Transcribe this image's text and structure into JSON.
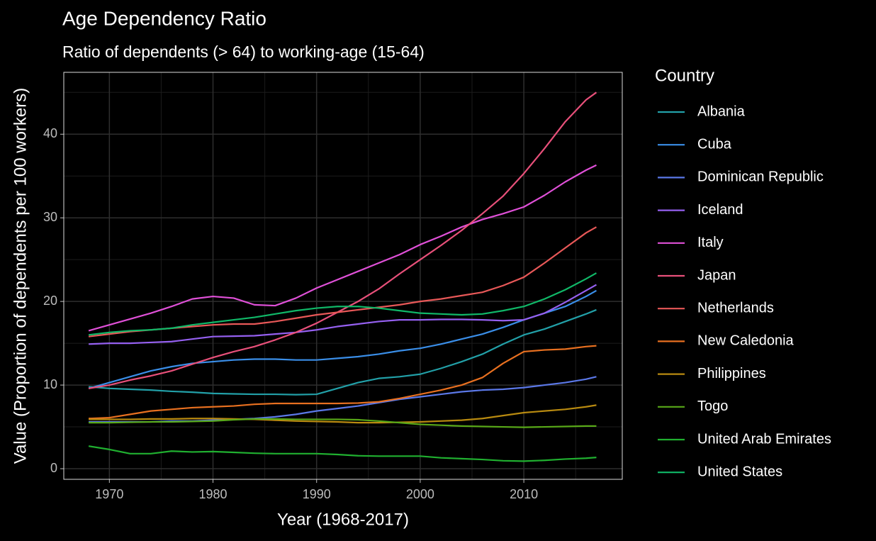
{
  "chart_data": {
    "type": "line",
    "title": "Age Dependency Ratio",
    "subtitle": "Ratio of dependents (> 64) to working-age (15-64)",
    "x_label": "Year (1968-2017)",
    "y_label": "Value (Proportion of dependents per 100 workers)",
    "legend_title": "Country",
    "legend": "right",
    "grid": true,
    "xlim": [
      1965.6,
      2019.5
    ],
    "ylim": [
      -1.27,
      47.4
    ],
    "xticks": [
      1970,
      1980,
      1990,
      2000,
      2010
    ],
    "yticks": [
      0,
      10,
      20,
      30,
      40
    ],
    "xminor": [
      1975,
      1985,
      1995,
      2005,
      2015
    ],
    "yminor": [
      5,
      15,
      25,
      35,
      45
    ],
    "x": [
      1968,
      1970,
      1972,
      1974,
      1976,
      1978,
      1980,
      1982,
      1984,
      1986,
      1988,
      1990,
      1992,
      1994,
      1996,
      1998,
      2000,
      2002,
      2004,
      2006,
      2008,
      2010,
      2012,
      2014,
      2016,
      2017
    ],
    "series": [
      {
        "name": "Albania",
        "color": "#22a0a8",
        "values": [
          9.8,
          9.6,
          9.5,
          9.4,
          9.25,
          9.15,
          9.0,
          8.95,
          8.9,
          8.9,
          8.85,
          8.9,
          9.6,
          10.3,
          10.8,
          11.0,
          11.3,
          12.0,
          12.8,
          13.7,
          14.9,
          16.0,
          16.7,
          17.6,
          18.5,
          19.0
        ]
      },
      {
        "name": "Cuba",
        "color": "#3a8ee8",
        "values": [
          9.6,
          10.3,
          11.0,
          11.7,
          12.2,
          12.6,
          12.8,
          13.0,
          13.1,
          13.1,
          13.0,
          13.0,
          13.2,
          13.4,
          13.7,
          14.1,
          14.4,
          14.9,
          15.5,
          16.1,
          16.9,
          17.8,
          18.6,
          19.4,
          20.6,
          21.3
        ]
      },
      {
        "name": "Dominican Republic",
        "color": "#5b78e8",
        "values": [
          5.6,
          5.6,
          5.6,
          5.6,
          5.7,
          5.7,
          5.8,
          5.9,
          6.0,
          6.2,
          6.5,
          6.9,
          7.2,
          7.5,
          7.9,
          8.3,
          8.6,
          8.9,
          9.2,
          9.4,
          9.5,
          9.7,
          10.0,
          10.3,
          10.7,
          11.0
        ]
      },
      {
        "name": "Iceland",
        "color": "#9560f0",
        "values": [
          14.9,
          15.0,
          15.0,
          15.1,
          15.2,
          15.5,
          15.8,
          15.85,
          15.9,
          16.1,
          16.3,
          16.6,
          17.0,
          17.3,
          17.6,
          17.8,
          17.8,
          17.85,
          17.85,
          17.8,
          17.7,
          17.8,
          18.6,
          19.9,
          21.3,
          22.0
        ]
      },
      {
        "name": "Italy",
        "color": "#e050d8",
        "values": [
          16.5,
          17.2,
          17.9,
          18.6,
          19.4,
          20.3,
          20.6,
          20.4,
          19.6,
          19.5,
          20.4,
          21.6,
          22.6,
          23.6,
          24.6,
          25.6,
          26.8,
          27.8,
          28.9,
          29.8,
          30.5,
          31.3,
          32.7,
          34.3,
          35.7,
          36.3
        ]
      },
      {
        "name": "Japan",
        "color": "#e8507a",
        "values": [
          9.6,
          10.0,
          10.6,
          11.1,
          11.7,
          12.5,
          13.3,
          14.0,
          14.6,
          15.4,
          16.3,
          17.4,
          18.7,
          20.0,
          21.5,
          23.3,
          25.0,
          26.7,
          28.5,
          30.5,
          32.6,
          35.3,
          38.3,
          41.5,
          44.1,
          45.0
        ]
      },
      {
        "name": "Netherlands",
        "color": "#e85858",
        "values": [
          15.8,
          16.1,
          16.4,
          16.6,
          16.8,
          17.0,
          17.2,
          17.3,
          17.3,
          17.6,
          18.0,
          18.4,
          18.7,
          19.0,
          19.3,
          19.6,
          20.0,
          20.3,
          20.7,
          21.1,
          21.9,
          22.9,
          24.6,
          26.4,
          28.2,
          28.9
        ]
      },
      {
        "name": "New Caledonia",
        "color": "#e87020",
        "values": [
          6.0,
          6.1,
          6.5,
          6.9,
          7.1,
          7.3,
          7.4,
          7.5,
          7.7,
          7.8,
          7.8,
          7.8,
          7.8,
          7.85,
          8.0,
          8.4,
          8.9,
          9.4,
          10.0,
          10.9,
          12.6,
          14.0,
          14.2,
          14.3,
          14.6,
          14.7
        ]
      },
      {
        "name": "Philippines",
        "color": "#b88a10",
        "values": [
          5.9,
          5.9,
          5.9,
          5.95,
          5.95,
          6.0,
          6.0,
          5.95,
          5.9,
          5.8,
          5.7,
          5.65,
          5.6,
          5.5,
          5.5,
          5.55,
          5.6,
          5.7,
          5.8,
          6.0,
          6.35,
          6.7,
          6.9,
          7.1,
          7.4,
          7.6
        ]
      },
      {
        "name": "Togo",
        "color": "#58a818",
        "values": [
          5.5,
          5.5,
          5.55,
          5.6,
          5.6,
          5.65,
          5.7,
          5.85,
          5.95,
          5.95,
          5.9,
          5.9,
          5.9,
          5.85,
          5.7,
          5.5,
          5.3,
          5.2,
          5.1,
          5.05,
          5.0,
          4.95,
          5.0,
          5.05,
          5.1,
          5.1
        ]
      },
      {
        "name": "United Arab Emirates",
        "color": "#20b030",
        "values": [
          2.7,
          2.3,
          1.8,
          1.8,
          2.1,
          2.0,
          2.05,
          1.95,
          1.85,
          1.8,
          1.8,
          1.8,
          1.7,
          1.55,
          1.5,
          1.5,
          1.5,
          1.3,
          1.2,
          1.1,
          0.95,
          0.9,
          1.0,
          1.15,
          1.25,
          1.35
        ]
      },
      {
        "name": "United States",
        "color": "#10b868",
        "values": [
          16.0,
          16.3,
          16.5,
          16.6,
          16.8,
          17.2,
          17.5,
          17.8,
          18.1,
          18.5,
          18.9,
          19.2,
          19.4,
          19.4,
          19.2,
          18.9,
          18.6,
          18.5,
          18.4,
          18.5,
          18.9,
          19.4,
          20.3,
          21.4,
          22.7,
          23.4
        ]
      }
    ]
  }
}
